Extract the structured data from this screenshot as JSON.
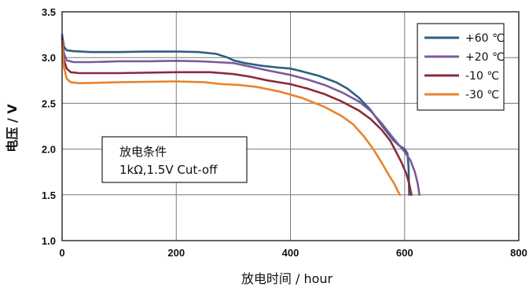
{
  "chart_data": {
    "type": "line",
    "xlabel": "放电时间 / hour",
    "ylabel": "电压 / V",
    "xlim": [
      0,
      800
    ],
    "ylim": [
      1.0,
      3.5
    ],
    "xticks": [
      "0",
      "200",
      "400",
      "600",
      "800"
    ],
    "yticks": [
      "1.0",
      "1.5",
      "2.0",
      "2.5",
      "3.0",
      "3.5"
    ],
    "grid": true,
    "legend_position": "top-right",
    "annotation": {
      "line1": "放电条件",
      "line2": "1kΩ,1.5V Cut-off"
    },
    "series": [
      {
        "name": "+60 ℃",
        "color": "#2e5f82",
        "points": [
          [
            0,
            3.25
          ],
          [
            3,
            3.12
          ],
          [
            8,
            3.08
          ],
          [
            20,
            3.07
          ],
          [
            50,
            3.06
          ],
          [
            100,
            3.06
          ],
          [
            150,
            3.065
          ],
          [
            200,
            3.065
          ],
          [
            240,
            3.06
          ],
          [
            270,
            3.04
          ],
          [
            290,
            3.0
          ],
          [
            300,
            2.97
          ],
          [
            320,
            2.94
          ],
          [
            350,
            2.91
          ],
          [
            380,
            2.89
          ],
          [
            400,
            2.88
          ],
          [
            420,
            2.85
          ],
          [
            450,
            2.8
          ],
          [
            480,
            2.73
          ],
          [
            500,
            2.66
          ],
          [
            520,
            2.56
          ],
          [
            540,
            2.43
          ],
          [
            560,
            2.26
          ],
          [
            580,
            2.1
          ],
          [
            590,
            2.04
          ],
          [
            600,
            2.0
          ],
          [
            605,
            1.95
          ],
          [
            607,
            1.8
          ],
          [
            608,
            1.5
          ]
        ]
      },
      {
        "name": "+20 ℃",
        "color": "#7a5b9e",
        "points": [
          [
            0,
            3.22
          ],
          [
            3,
            3.05
          ],
          [
            8,
            2.97
          ],
          [
            20,
            2.95
          ],
          [
            50,
            2.95
          ],
          [
            100,
            2.96
          ],
          [
            150,
            2.96
          ],
          [
            200,
            2.965
          ],
          [
            240,
            2.96
          ],
          [
            270,
            2.95
          ],
          [
            300,
            2.94
          ],
          [
            330,
            2.9
          ],
          [
            360,
            2.86
          ],
          [
            400,
            2.81
          ],
          [
            430,
            2.76
          ],
          [
            460,
            2.7
          ],
          [
            490,
            2.62
          ],
          [
            520,
            2.52
          ],
          [
            540,
            2.42
          ],
          [
            560,
            2.28
          ],
          [
            580,
            2.12
          ],
          [
            600,
            1.97
          ],
          [
            610,
            1.88
          ],
          [
            618,
            1.75
          ],
          [
            623,
            1.62
          ],
          [
            626,
            1.5
          ]
        ]
      },
      {
        "name": "-10 ℃",
        "color": "#8c2a3c",
        "points": [
          [
            0,
            3.2
          ],
          [
            3,
            2.98
          ],
          [
            8,
            2.88
          ],
          [
            15,
            2.84
          ],
          [
            30,
            2.83
          ],
          [
            100,
            2.83
          ],
          [
            200,
            2.84
          ],
          [
            260,
            2.84
          ],
          [
            300,
            2.82
          ],
          [
            330,
            2.79
          ],
          [
            360,
            2.75
          ],
          [
            400,
            2.71
          ],
          [
            430,
            2.66
          ],
          [
            460,
            2.6
          ],
          [
            490,
            2.52
          ],
          [
            520,
            2.42
          ],
          [
            540,
            2.33
          ],
          [
            560,
            2.21
          ],
          [
            575,
            2.09
          ],
          [
            585,
            1.97
          ],
          [
            595,
            1.85
          ],
          [
            603,
            1.73
          ],
          [
            608,
            1.62
          ],
          [
            612,
            1.5
          ]
        ]
      },
      {
        "name": "-30 ℃",
        "color": "#e8832e",
        "points": [
          [
            0,
            3.18
          ],
          [
            3,
            2.9
          ],
          [
            8,
            2.77
          ],
          [
            15,
            2.73
          ],
          [
            30,
            2.72
          ],
          [
            100,
            2.73
          ],
          [
            200,
            2.74
          ],
          [
            250,
            2.73
          ],
          [
            280,
            2.71
          ],
          [
            310,
            2.7
          ],
          [
            340,
            2.68
          ],
          [
            380,
            2.63
          ],
          [
            420,
            2.56
          ],
          [
            460,
            2.46
          ],
          [
            490,
            2.36
          ],
          [
            510,
            2.27
          ],
          [
            530,
            2.13
          ],
          [
            545,
            2.0
          ],
          [
            560,
            1.85
          ],
          [
            572,
            1.72
          ],
          [
            582,
            1.62
          ],
          [
            588,
            1.54
          ],
          [
            592,
            1.5
          ]
        ]
      }
    ]
  }
}
